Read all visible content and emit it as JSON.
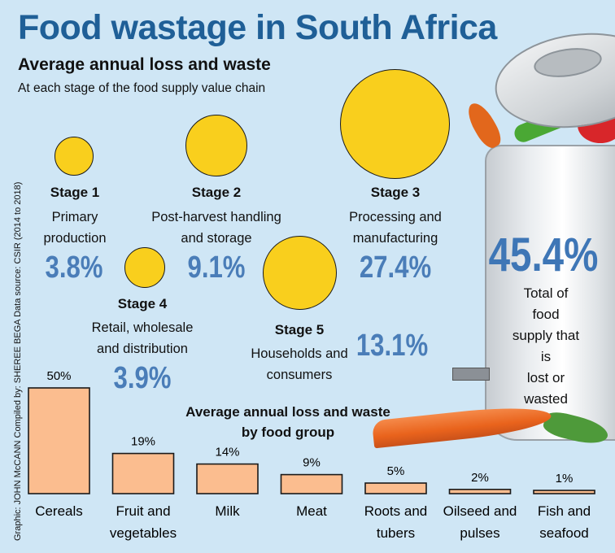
{
  "title": "Food wastage in South Africa",
  "subtitle": "Average annual loss and waste",
  "subsubtitle": "At each stage of the food supply value chain",
  "credit": "Graphic: JOHN McCANN  Compiled by: SHEREE BEGA Data source: CSIR (2014 to 2018)",
  "stages": [
    {
      "title": "Stage 1",
      "desc": "Primary\nproduction",
      "value": "3.8%"
    },
    {
      "title": "Stage 2",
      "desc": "Post-harvest handling\nand storage",
      "value": "9.1%"
    },
    {
      "title": "Stage 3",
      "desc": "Processing and\nmanufacturing",
      "value": "27.4%"
    },
    {
      "title": "Stage 4",
      "desc": "Retail, wholesale\nand distribution",
      "value": "3.9%"
    },
    {
      "title": "Stage 5",
      "desc": "Households and\nconsumers",
      "value": "13.1%"
    }
  ],
  "total": {
    "value": "45.4%",
    "desc": "Total of food\nsupply that is\nlost or wasted"
  },
  "colors": {
    "title": "#1f5f97",
    "value": "#4a7db8",
    "bubble": "#f9cf1d",
    "bar": "#fbbd8f",
    "background": "#cfe6f5"
  },
  "chart_data": [
    {
      "type": "bubble",
      "title": "Average annual loss and waste",
      "subtitle": "At each stage of the food supply value chain",
      "categories": [
        "Stage 1",
        "Stage 2",
        "Stage 3",
        "Stage 4",
        "Stage 5"
      ],
      "values": [
        3.8,
        9.1,
        27.4,
        3.9,
        13.1
      ],
      "unit": "%"
    },
    {
      "type": "bar",
      "title": "Average annual loss and waste\nby food group",
      "categories": [
        "Cereals",
        "Fruit and\nvegetables",
        "Milk",
        "Meat",
        "Roots and\ntubers",
        "Oilseed and\npulses",
        "Fish and\nseafood"
      ],
      "values": [
        50,
        19,
        14,
        9,
        5,
        2,
        1
      ],
      "labels": [
        "50%",
        "19%",
        "14%",
        "9%",
        "5%",
        "2%",
        "1%"
      ],
      "ylim": [
        0,
        50
      ]
    }
  ]
}
